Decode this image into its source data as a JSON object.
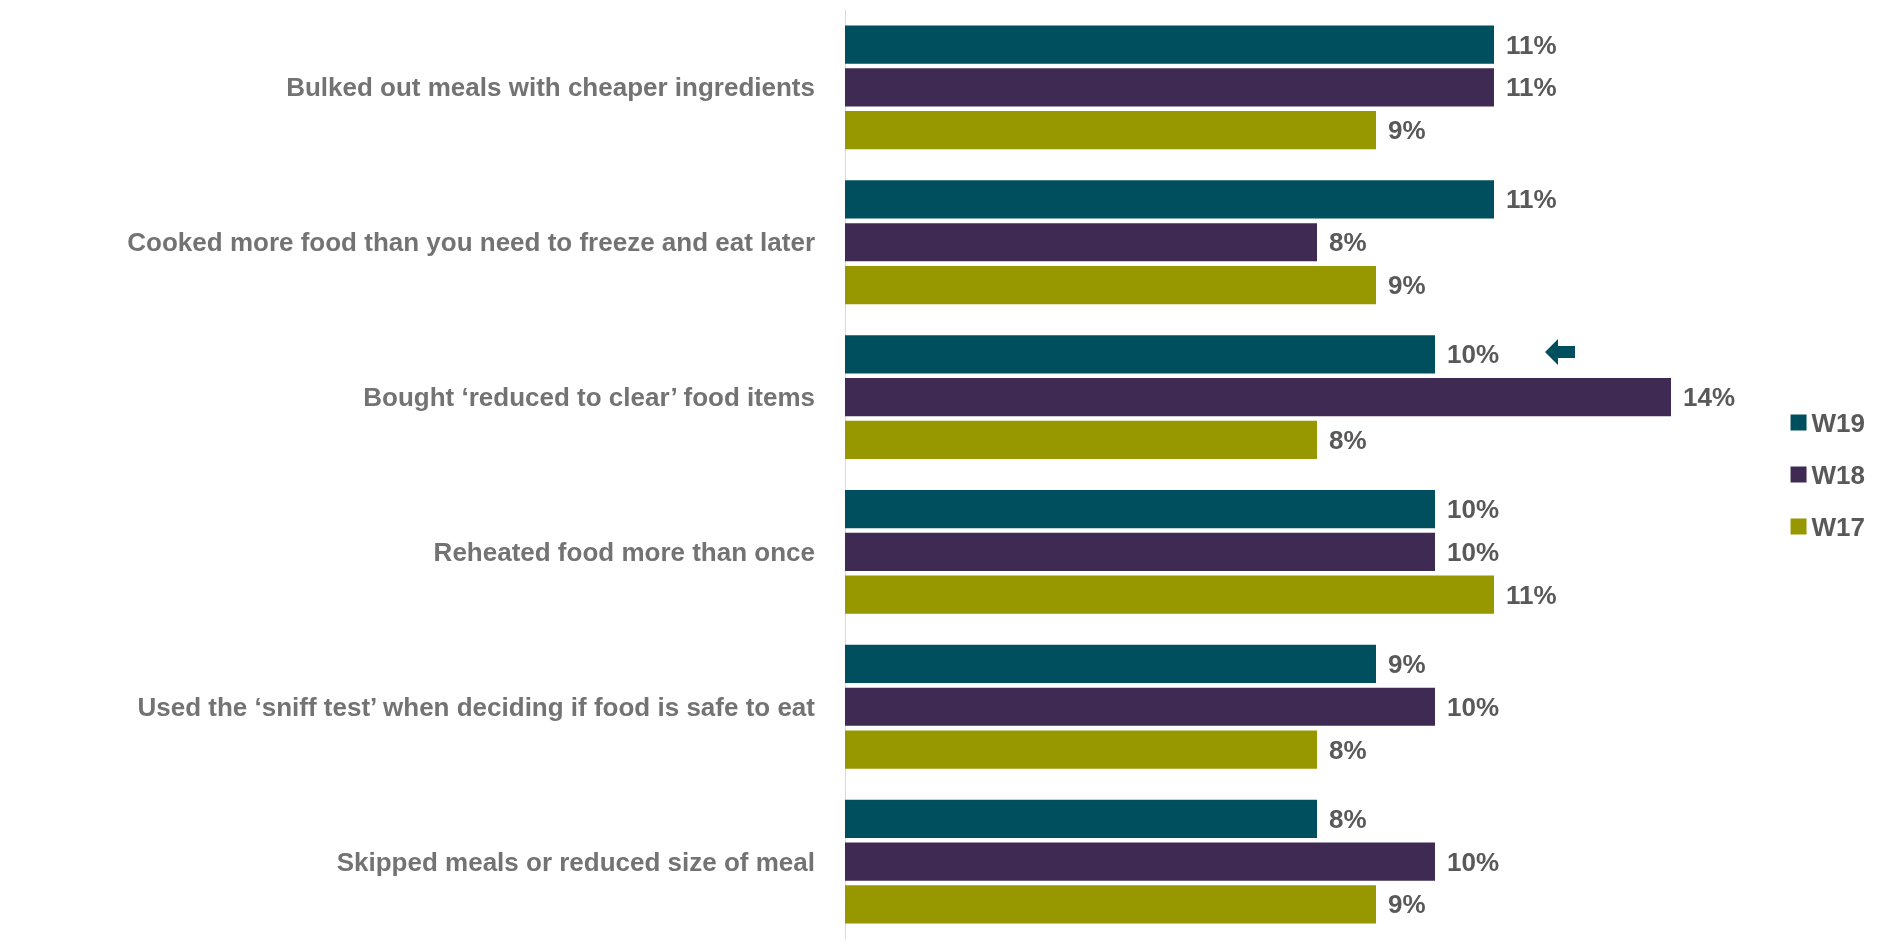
{
  "chart_data": {
    "type": "bar",
    "orientation": "horizontal",
    "categories": [
      "Bulked out meals with cheaper ingredients",
      "Cooked more food than you need to freeze and eat later",
      "Bought ‘reduced to clear’ food items",
      "Reheated food more than once",
      "Used the ‘sniff test’ when deciding if food is safe to eat",
      "Skipped meals or reduced size of meal"
    ],
    "series": [
      {
        "name": "W19",
        "color": "#004f5f",
        "values": [
          11,
          11,
          10,
          10,
          9,
          8
        ],
        "value_labels": [
          "11%",
          "11%",
          "10%",
          "10%",
          "9%",
          "8%"
        ]
      },
      {
        "name": "W18",
        "color": "#3e2a52",
        "values": [
          11,
          8,
          14,
          10,
          10,
          10
        ],
        "value_labels": [
          "11%",
          "8%",
          "14%",
          "10%",
          "10%",
          "10%"
        ]
      },
      {
        "name": "W17",
        "color": "#979700",
        "values": [
          9,
          9,
          8,
          11,
          8,
          9
        ],
        "value_labels": [
          "9%",
          "9%",
          "8%",
          "11%",
          "8%",
          "9%"
        ]
      }
    ],
    "legend": "right",
    "grid": false,
    "tick_labels": "y"
  }
}
